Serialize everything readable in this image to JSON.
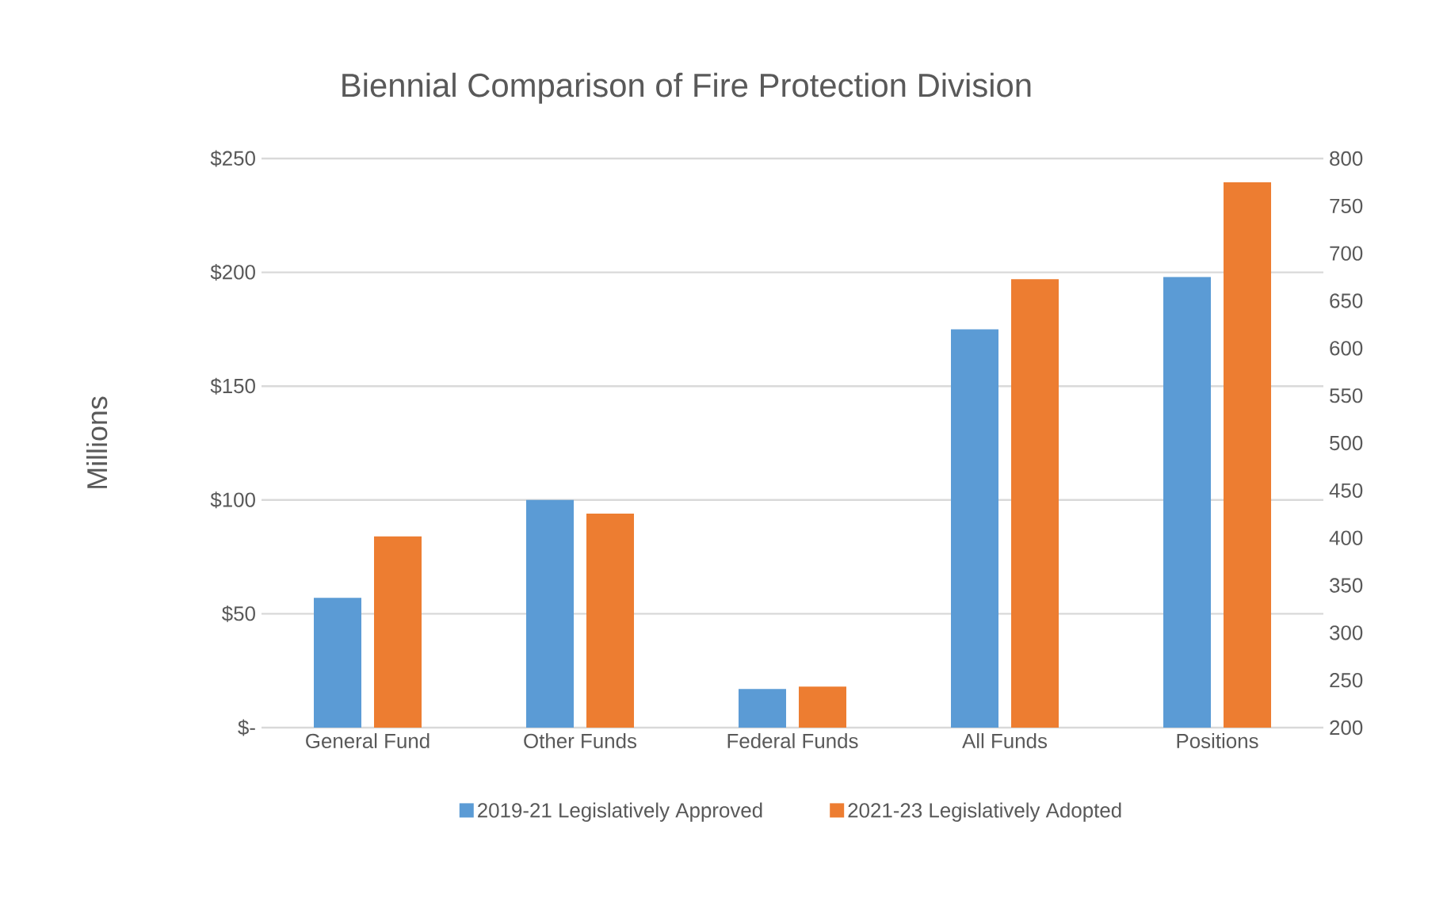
{
  "chart_data": {
    "type": "bar",
    "title": "Biennial Comparison of Fire Protection Division",
    "ylabel": "Millions",
    "categories": [
      "General Fund",
      "Other Funds",
      "Federal Funds",
      "All Funds",
      "Positions"
    ],
    "series": [
      {
        "name": "2019-21 Legislatively Approved",
        "color": "#5b9bd5",
        "values": [
          57,
          100,
          17,
          175,
          null
        ]
      },
      {
        "name": "2021-23 Legislatively Adopted",
        "color": "#ed7d31",
        "values": [
          84,
          94,
          18,
          197,
          null
        ]
      },
      {
        "color": "#5b9bd5",
        "axis": "y2",
        "values": [
          null,
          null,
          null,
          null,
          675
        ]
      },
      {
        "color": "#ed7d31",
        "axis": "y2",
        "values": [
          null,
          null,
          null,
          null,
          775
        ]
      }
    ],
    "ylim": [
      0,
      250
    ],
    "yticks": [
      {
        "value": 0,
        "label": "$-"
      },
      {
        "value": 50,
        "label": "$50"
      },
      {
        "value": 100,
        "label": "$100"
      },
      {
        "value": 150,
        "label": "$150"
      },
      {
        "value": 200,
        "label": "$200"
      },
      {
        "value": 250,
        "label": "$250"
      }
    ],
    "y2lim": [
      200,
      800
    ],
    "y2ticks": [
      200,
      250,
      300,
      350,
      400,
      450,
      500,
      550,
      600,
      650,
      700,
      750,
      800
    ],
    "grid": "y",
    "legend": "bottom"
  }
}
